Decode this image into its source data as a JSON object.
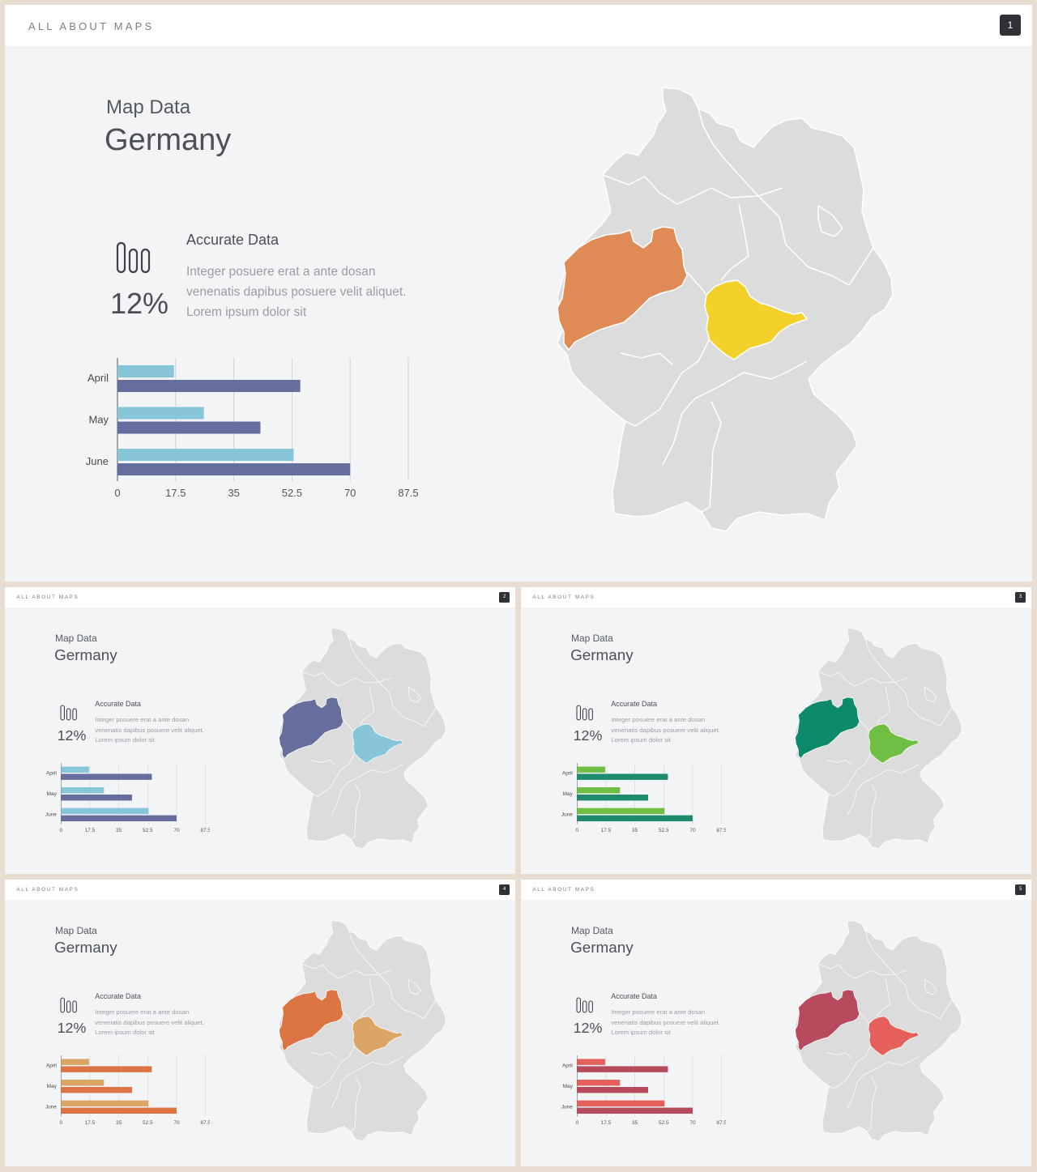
{
  "slides": [
    {
      "header": {
        "brand": "ALL ABOUT MAPS",
        "page": "1"
      },
      "subtitle": "Map Data",
      "title": "Germany",
      "stat": {
        "percent": "12%",
        "heading": "Accurate Data",
        "lines": [
          "Integer posuere erat a ante dosan",
          "venenatis dapibus posuere velit aliquet.",
          "Lorem ipsum dolor sit"
        ]
      },
      "colors": {
        "light": "#86c6d8",
        "dark": "#666e9d",
        "region_west": "#e08b55",
        "region_center": "#f4d12a"
      }
    },
    {
      "header": {
        "brand": "ALL ABOUT MAPS",
        "page": "2"
      },
      "subtitle": "Map Data",
      "title": "Germany",
      "stat": {
        "percent": "12%",
        "heading": "Accurate Data",
        "lines": [
          "Integer posuere erat a ante dosan",
          "venenatis dapibus posuere velit aliquet.",
          "Lorem ipsum dolor sit"
        ]
      },
      "colors": {
        "light": "#86c6d8",
        "dark": "#666e9d",
        "region_west": "#666e9d",
        "region_center": "#86c6d8"
      }
    },
    {
      "header": {
        "brand": "ALL ABOUT MAPS",
        "page": "3"
      },
      "subtitle": "Map Data",
      "title": "Germany",
      "stat": {
        "percent": "12%",
        "heading": "Accurate Data",
        "lines": [
          "Integer posuere erat a ante dosan",
          "venenatis dapibus posuere velit aliquet.",
          "Lorem ipsum dolor sit"
        ]
      },
      "colors": {
        "light": "#6fbf44",
        "dark": "#1f8a6d",
        "region_west": "#0d8a6c",
        "region_center": "#6fbf44"
      }
    },
    {
      "header": {
        "brand": "ALL ABOUT MAPS",
        "page": "4"
      },
      "subtitle": "Map Data",
      "title": "Germany",
      "stat": {
        "percent": "12%",
        "heading": "Accurate Data",
        "lines": [
          "Integer posuere erat a ante dosan",
          "venenatis dapibus posuere velit aliquet.",
          "Lorem ipsum dolor sit"
        ]
      },
      "colors": {
        "light": "#dba565",
        "dark": "#dc7443",
        "region_west": "#dc7443",
        "region_center": "#dba565"
      }
    },
    {
      "header": {
        "brand": "ALL ABOUT MAPS",
        "page": "5"
      },
      "subtitle": "Map Data",
      "title": "Germany",
      "stat": {
        "percent": "12%",
        "heading": "Accurate Data",
        "lines": [
          "Integer posuere erat a ante dosan",
          "venenatis dapibus posuere velit aliquet.",
          "Lorem ipsum dolor sit"
        ]
      },
      "colors": {
        "light": "#e5605a",
        "dark": "#b84a5e",
        "region_west": "#b84a5e",
        "region_center": "#e5605a"
      }
    }
  ],
  "chart_data": {
    "type": "bar",
    "orientation": "horizontal",
    "categories": [
      "April",
      "May",
      "June"
    ],
    "series": [
      {
        "values": [
          17,
          26,
          53
        ]
      },
      {
        "values": [
          55,
          43,
          70
        ]
      }
    ],
    "ticks": [
      "0",
      "17.5",
      "35",
      "52.5",
      "70",
      "87.5"
    ],
    "xlim": [
      0,
      87.5
    ],
    "grid": true
  }
}
